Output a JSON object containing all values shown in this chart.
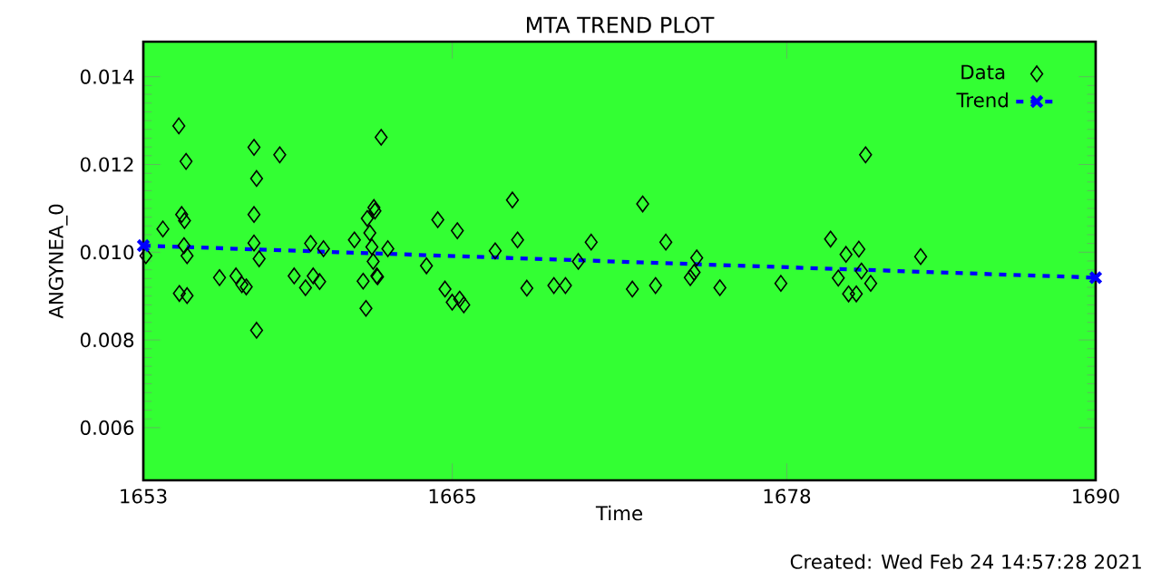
{
  "chart_data": {
    "type": "scatter",
    "title": "MTA TREND PLOT",
    "xlabel": "Time",
    "ylabel": "ANGYNEA_0",
    "annotations": [
      "Created: Wed Feb 24 14:57:28 2021"
    ],
    "xlim": [
      1653,
      1690
    ],
    "xticks": [
      1653,
      1665,
      1678,
      1690
    ],
    "ylim": [
      0.0048,
      0.0148
    ],
    "yticks": [
      0.006,
      0.008,
      {
        "value": 0.01,
        "label": "0.010"
      },
      0.012,
      0.014
    ],
    "legend": "top right",
    "grid": false,
    "series": [
      {
        "name": "Data",
        "type": "scatter",
        "marker": "diamond",
        "color": "#000000",
        "x": [
          1653.1,
          1653.76,
          1654.38,
          1654.49,
          1654.6,
          1654.58,
          1654.7,
          1654.4,
          1654.7,
          1654.66,
          1655.96,
          1656.6,
          1656.83,
          1657.0,
          1657.3,
          1657.3,
          1657.4,
          1657.3,
          1657.4,
          1657.5,
          1658.3,
          1658.86,
          1659.3,
          1659.5,
          1659.6,
          1659.85,
          1660.0,
          1661.2,
          1661.54,
          1661.65,
          1661.7,
          1661.8,
          1661.88,
          1661.96,
          1662.0,
          1661.93,
          1662.07,
          1662.1,
          1662.24,
          1662.5,
          1664.0,
          1664.44,
          1664.72,
          1665.0,
          1665.2,
          1665.29,
          1665.45,
          1666.67,
          1667.34,
          1667.54,
          1667.9,
          1668.95,
          1669.4,
          1669.9,
          1670.4,
          1672.0,
          1672.4,
          1672.9,
          1673.3,
          1674.25,
          1674.4,
          1674.5,
          1675.4,
          1677.77,
          1679.7,
          1680.0,
          1680.3,
          1680.4,
          1680.7,
          1680.8,
          1680.9,
          1681.06,
          1681.26,
          1683.2
        ],
        "values": [
          0.00992,
          0.01053,
          0.01288,
          0.01086,
          0.01072,
          0.01015,
          0.00992,
          0.00906,
          0.00901,
          0.01207,
          0.00942,
          0.00946,
          0.00926,
          0.00921,
          0.01239,
          0.01086,
          0.01168,
          0.01021,
          0.00822,
          0.00985,
          0.01222,
          0.00946,
          0.00919,
          0.0102,
          0.00946,
          0.00933,
          0.01008,
          0.01028,
          0.00934,
          0.00872,
          0.01077,
          0.01044,
          0.01012,
          0.01102,
          0.01094,
          0.00979,
          0.00946,
          0.00944,
          0.01262,
          0.01008,
          0.00969,
          0.01074,
          0.00916,
          0.00886,
          0.01049,
          0.00893,
          0.0088,
          0.01003,
          0.01119,
          0.01028,
          0.00918,
          0.00924,
          0.00924,
          0.00979,
          0.01023,
          0.00916,
          0.0111,
          0.00924,
          0.01023,
          0.00942,
          0.00954,
          0.00987,
          0.00919,
          0.00929,
          0.0103,
          0.00941,
          0.00995,
          0.00905,
          0.00905,
          0.01007,
          0.00957,
          0.01222,
          0.00929,
          0.0099
        ]
      },
      {
        "name": "Trend",
        "type": "line",
        "marker": "cross",
        "line_style": "dashed",
        "color": "#0000ff",
        "x": [
          1653,
          1690
        ],
        "values": [
          0.01015,
          0.00942
        ]
      }
    ]
  }
}
